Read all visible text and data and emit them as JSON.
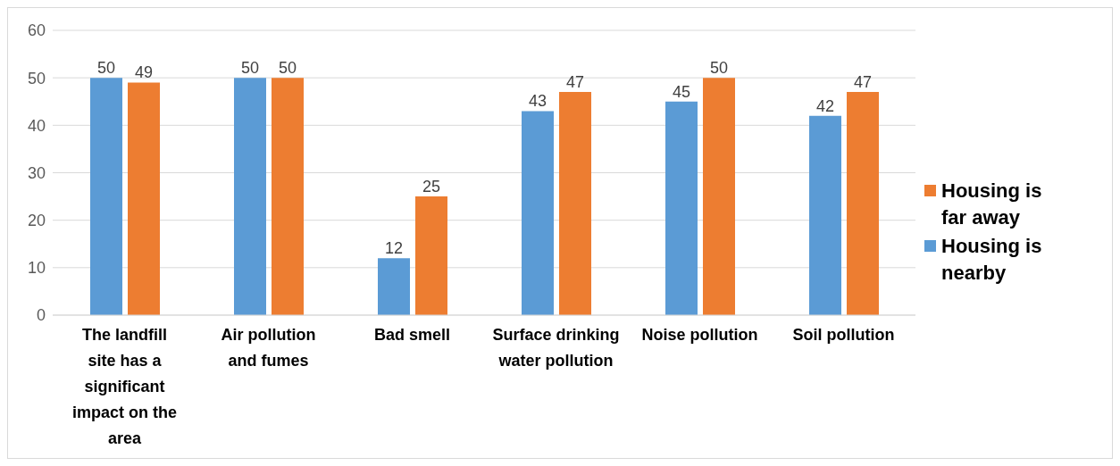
{
  "chart_data": {
    "type": "bar",
    "categories": [
      "The landfill site has a significant impact on the area",
      "Air pollution and fumes",
      "Bad smell",
      "Surface drinking water pollution",
      "Noise pollution",
      "Soil pollution"
    ],
    "series": [
      {
        "name": "Housing is nearby",
        "color": "#5b9bd5",
        "values": [
          50,
          50,
          12,
          43,
          45,
          42
        ]
      },
      {
        "name": "Housing is far away",
        "color": "#ed7d31",
        "values": [
          49,
          50,
          25,
          47,
          50,
          47
        ]
      }
    ],
    "ylim": [
      0,
      60
    ],
    "yticks": [
      0,
      10,
      20,
      30,
      40,
      50,
      60
    ],
    "grid": "y",
    "legend": "right",
    "data_labels": true
  }
}
